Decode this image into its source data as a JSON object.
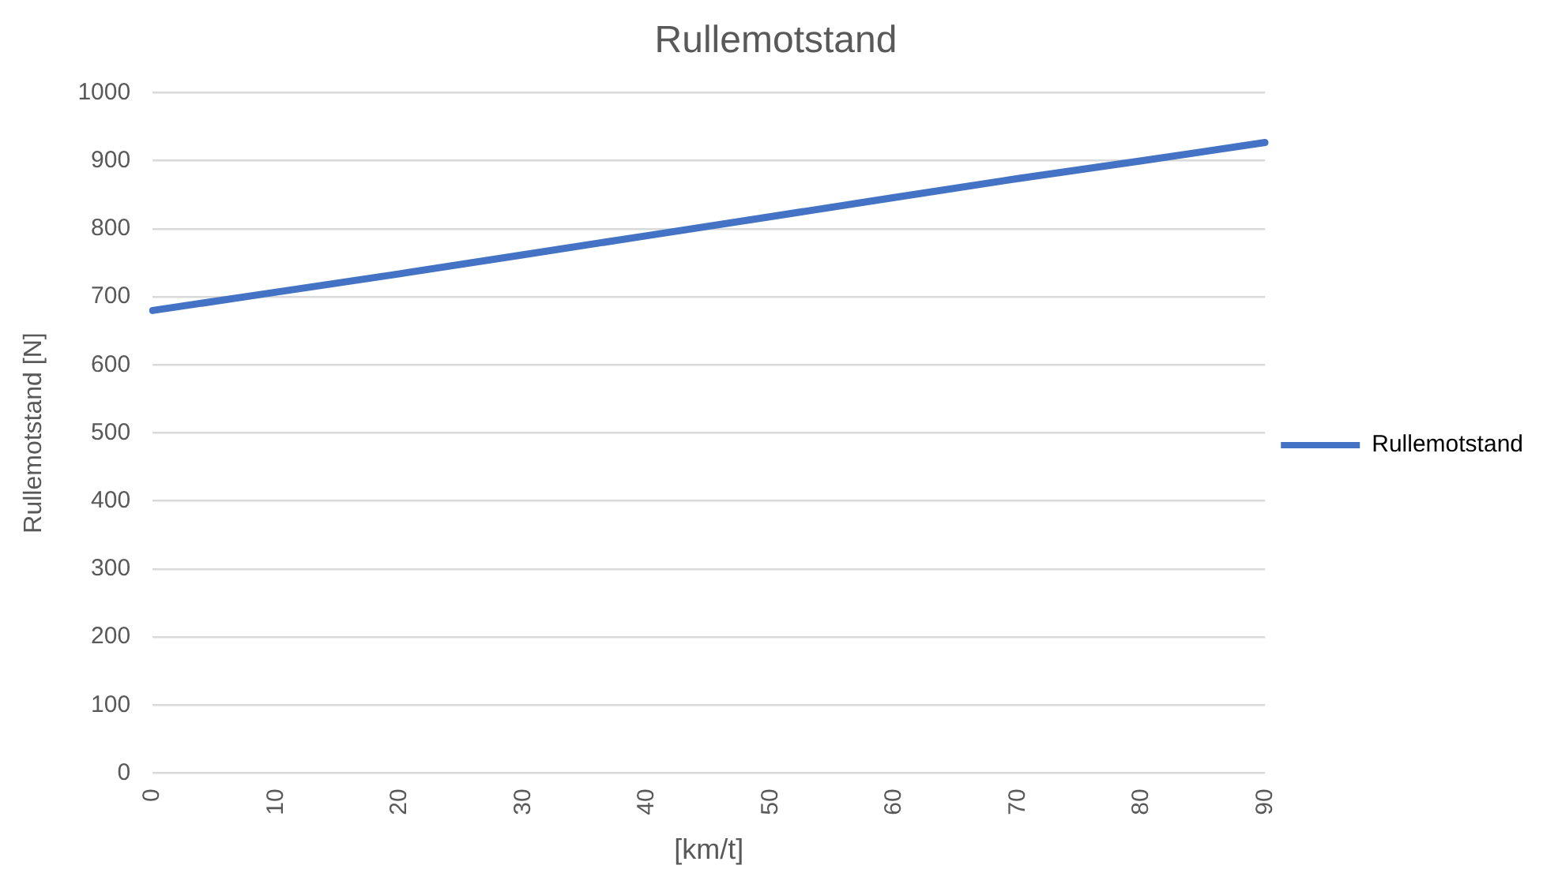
{
  "chart_data": {
    "type": "line",
    "title": "Rullemotstand",
    "xlabel": "[km/t]",
    "ylabel": "Rullemotstand [N]",
    "categories": [
      "0",
      "10",
      "20",
      "30",
      "40",
      "50",
      "60",
      "70",
      "80",
      "90"
    ],
    "series": [
      {
        "name": "Rullemotstand",
        "color": "#4472c4",
        "values": [
          680,
          707,
          734,
          762,
          790,
          818,
          846,
          874,
          900,
          927
        ]
      }
    ],
    "ylim": [
      0,
      1000
    ],
    "yticks": [
      0,
      100,
      200,
      300,
      400,
      500,
      600,
      700,
      800,
      900,
      1000
    ],
    "grid": "y",
    "legend": "right",
    "marker": "none"
  }
}
